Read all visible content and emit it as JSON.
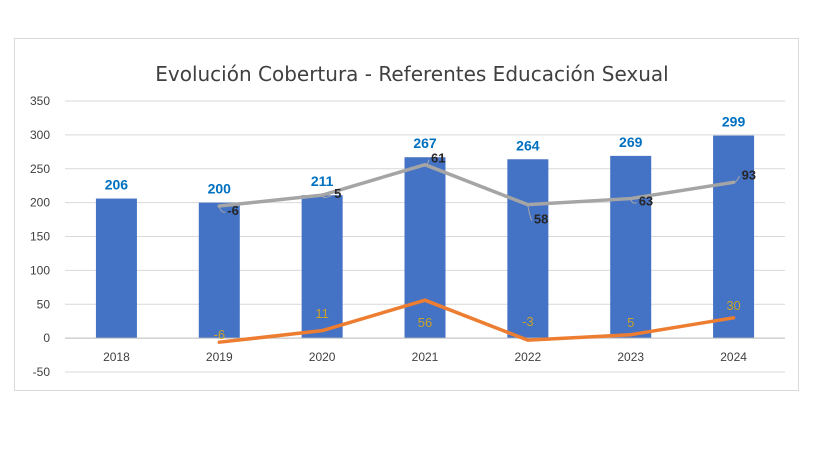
{
  "chart_data": {
    "type": "bar",
    "title": "Evolución Cobertura - Referentes Educación Sexual",
    "categories": [
      "2018",
      "2019",
      "2020",
      "2021",
      "2022",
      "2023",
      "2024"
    ],
    "ylim": [
      -50,
      350
    ],
    "yticks": [
      "350",
      "300",
      "250",
      "200",
      "150",
      "100",
      "50",
      "0",
      "-50"
    ],
    "ytick_values": [
      350,
      300,
      250,
      200,
      150,
      100,
      50,
      0,
      -50
    ],
    "grid": true,
    "series": [
      {
        "type": "bar",
        "color": "#4472c4",
        "values": [
          206,
          200,
          211,
          267,
          264,
          269,
          299
        ],
        "labels": [
          "206",
          "200",
          "211",
          "267",
          "264",
          "269",
          "299"
        ]
      },
      {
        "type": "line",
        "color": "#a5a5a5",
        "values": [
          null,
          195,
          211,
          256,
          197,
          206,
          230
        ],
        "labels": [
          null,
          "-6",
          "5",
          "61",
          "58",
          "63",
          "93"
        ]
      },
      {
        "type": "line",
        "color": "#ed7d31",
        "values": [
          null,
          -6,
          11,
          56,
          -3,
          5,
          30
        ],
        "labels": [
          null,
          "-6",
          "11",
          "56",
          "-3",
          "5",
          "30"
        ]
      }
    ]
  }
}
